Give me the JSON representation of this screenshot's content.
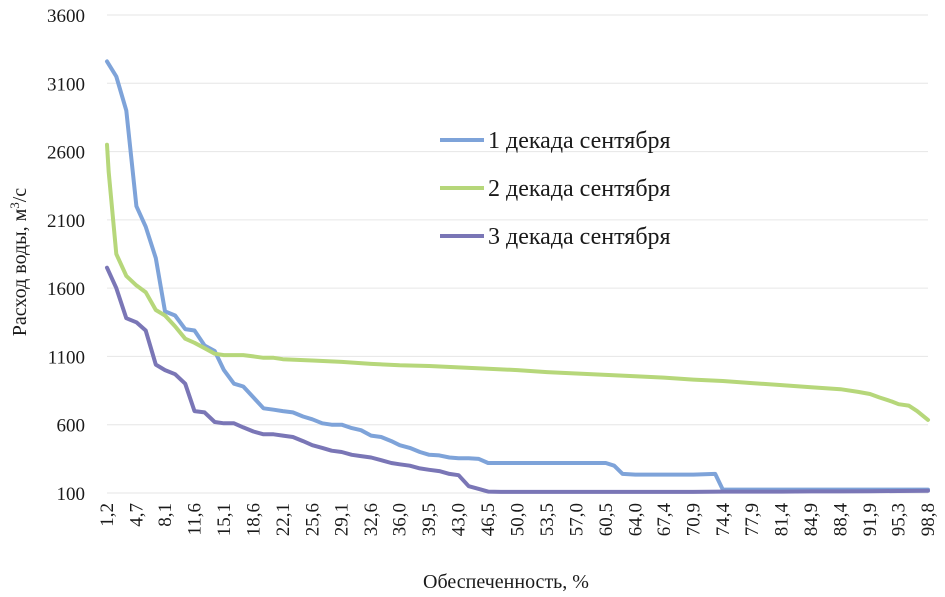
{
  "chart_data": {
    "type": "line",
    "title": "",
    "xlabel": "Обеспеченность, %",
    "ylabel": "Расход воды, м³/с",
    "ylabel_parts": {
      "before": "Расход воды, м",
      "sup": "3",
      "after": "/с"
    },
    "ylim": [
      100,
      3600
    ],
    "yticks": [
      100,
      600,
      1100,
      1600,
      2100,
      2600,
      3100,
      3600
    ],
    "ytick_labels": [
      "100",
      "600",
      "1100",
      "1600",
      "2100",
      "2600",
      "3100",
      "3600"
    ],
    "xlim": [
      1.2,
      98.8
    ],
    "xtick_labels": [
      "1,2",
      "4,7",
      "8,1",
      "11,6",
      "15,1",
      "18,6",
      "22,1",
      "25,6",
      "29,1",
      "32,6",
      "36,0",
      "39,5",
      "43,0",
      "46,5",
      "50,0",
      "53,5",
      "57,0",
      "60,5",
      "64,0",
      "67,4",
      "70,9",
      "74,4",
      "77,9",
      "81,4",
      "84,9",
      "88,4",
      "91,9",
      "95,3",
      "98,8"
    ],
    "xticks": [
      1.2,
      4.7,
      8.1,
      11.6,
      15.1,
      18.6,
      22.1,
      25.6,
      29.1,
      32.6,
      36.0,
      39.5,
      43.0,
      46.5,
      50.0,
      53.5,
      57.0,
      60.5,
      64.0,
      67.4,
      70.9,
      74.4,
      77.9,
      81.4,
      84.9,
      88.4,
      91.9,
      95.3,
      98.8
    ],
    "grid": true,
    "legend_position": "center-right",
    "series": [
      {
        "name": "1 декада сентября",
        "color": "#7ea3d9",
        "x": [
          1.2,
          2.3,
          3.5,
          4.7,
          5.8,
          7.0,
          8.1,
          9.3,
          10.5,
          11.6,
          12.8,
          14.0,
          15.1,
          16.3,
          17.4,
          18.6,
          19.8,
          21.0,
          22.1,
          23.3,
          24.5,
          25.6,
          26.8,
          27.9,
          29.1,
          30.3,
          31.4,
          32.6,
          33.8,
          35.0,
          36.0,
          37.2,
          38.4,
          39.5,
          40.7,
          41.9,
          43.0,
          44.2,
          45.4,
          46.5,
          48.0,
          50.0,
          53.5,
          57.0,
          59.5,
          60.5,
          61.5,
          62.5,
          64.0,
          67.4,
          70.9,
          73.5,
          74.4,
          77.9,
          81.4,
          84.9,
          88.4,
          91.9,
          95.3,
          98.8
        ],
        "values": [
          3260,
          3150,
          2900,
          2200,
          2050,
          1820,
          1430,
          1400,
          1300,
          1290,
          1180,
          1140,
          1000,
          900,
          880,
          800,
          720,
          710,
          700,
          690,
          660,
          640,
          610,
          600,
          600,
          575,
          560,
          520,
          510,
          480,
          450,
          430,
          400,
          380,
          375,
          360,
          355,
          355,
          350,
          320,
          320,
          320,
          320,
          320,
          320,
          320,
          300,
          240,
          235,
          235,
          235,
          240,
          125,
          125,
          125,
          125,
          125,
          125,
          125,
          125
        ]
      },
      {
        "name": "2 декада сентября",
        "color": "#b6d77a",
        "x": [
          1.2,
          1.4,
          2.3,
          3.5,
          4.7,
          5.8,
          7.0,
          8.1,
          9.3,
          10.5,
          11.6,
          12.8,
          14.0,
          15.1,
          16.3,
          17.4,
          18.6,
          19.8,
          21.0,
          22.1,
          25.6,
          29.1,
          32.6,
          36.0,
          39.5,
          43.0,
          46.5,
          50.0,
          53.5,
          57.0,
          60.5,
          64.0,
          67.4,
          70.9,
          74.4,
          77.9,
          81.4,
          84.9,
          88.4,
          90.5,
          91.9,
          93.0,
          94.5,
          95.3,
          96.5,
          97.5,
          98.8
        ],
        "values": [
          2650,
          2450,
          1850,
          1690,
          1620,
          1570,
          1440,
          1400,
          1320,
          1230,
          1200,
          1160,
          1120,
          1110,
          1110,
          1110,
          1100,
          1090,
          1090,
          1080,
          1070,
          1060,
          1045,
          1035,
          1030,
          1020,
          1010,
          1000,
          985,
          975,
          965,
          955,
          945,
          930,
          920,
          905,
          890,
          875,
          860,
          840,
          825,
          800,
          770,
          750,
          740,
          700,
          635
        ]
      },
      {
        "name": "3 декада сентября",
        "color": "#7a76b6",
        "x": [
          1.2,
          2.3,
          3.5,
          4.7,
          5.8,
          7.0,
          8.1,
          9.3,
          10.5,
          11.6,
          12.8,
          14.0,
          15.1,
          16.3,
          17.4,
          18.6,
          19.8,
          21.0,
          22.1,
          23.3,
          24.5,
          25.6,
          26.8,
          27.9,
          29.1,
          30.3,
          31.4,
          32.6,
          33.8,
          35.0,
          36.0,
          37.2,
          38.4,
          39.5,
          40.7,
          41.9,
          43.0,
          44.2,
          45.4,
          46.5,
          48.0,
          50.0,
          53.5,
          57.0,
          60.5,
          64.0,
          67.4,
          70.9,
          74.4,
          77.9,
          81.4,
          84.9,
          88.4,
          91.9,
          95.3,
          98.8
        ],
        "values": [
          1750,
          1600,
          1380,
          1350,
          1290,
          1040,
          1000,
          970,
          900,
          700,
          690,
          620,
          610,
          610,
          580,
          550,
          530,
          530,
          520,
          510,
          480,
          450,
          430,
          410,
          400,
          380,
          370,
          360,
          340,
          320,
          310,
          300,
          280,
          270,
          260,
          240,
          230,
          150,
          130,
          110,
          108,
          108,
          108,
          108,
          108,
          108,
          108,
          108,
          110,
          110,
          110,
          112,
          112,
          113,
          115,
          117
        ]
      }
    ]
  }
}
